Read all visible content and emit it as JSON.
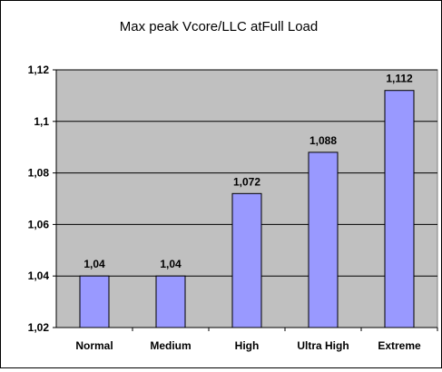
{
  "chart_data": {
    "type": "bar",
    "title": "Max peak Vcore/LLC atFull Load",
    "xlabel": "",
    "ylabel": "",
    "categories": [
      "Normal",
      "Medium",
      "High",
      "Ultra High",
      "Extreme"
    ],
    "values": [
      1.04,
      1.04,
      1.072,
      1.088,
      1.112
    ],
    "value_labels": [
      "1,04",
      "1,04",
      "1,072",
      "1,088",
      "1,112"
    ],
    "ylim": [
      1.02,
      1.12
    ],
    "yticks": [
      1.02,
      1.04,
      1.06,
      1.08,
      1.1,
      1.12
    ],
    "ytick_labels": [
      "1,02",
      "1,04",
      "1,06",
      "1,08",
      "1,1",
      "1,12"
    ],
    "grid": true,
    "legend": "none",
    "colors": {
      "plot_background": "#c0c0c0",
      "bar_fill": "#9999ff",
      "bar_stroke": "#000000",
      "gridline": "#000000"
    }
  }
}
